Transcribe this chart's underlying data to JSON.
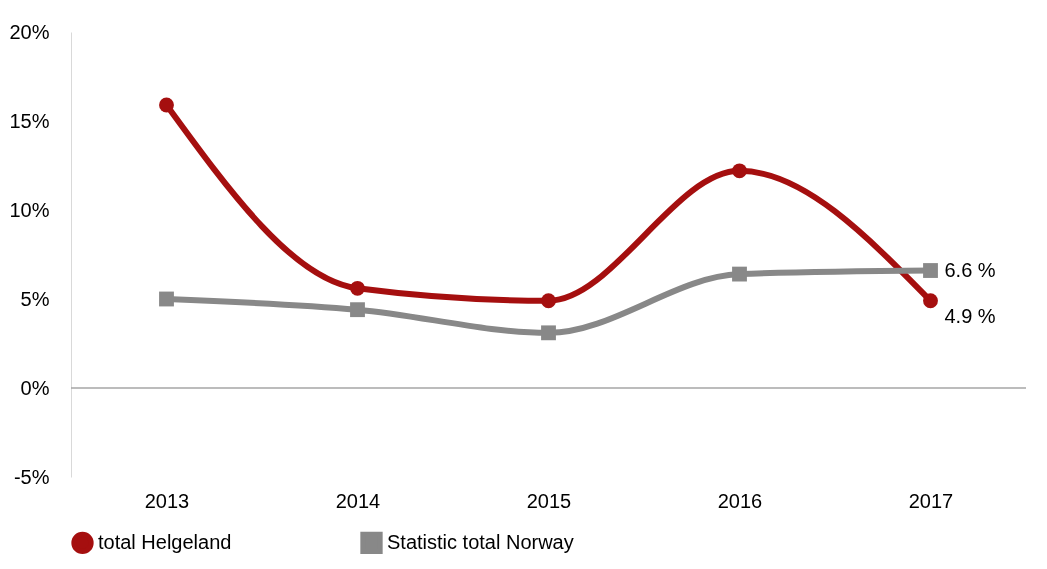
{
  "chart_data": {
    "type": "line",
    "categories": [
      "2013",
      "2014",
      "2015",
      "2016",
      "2017"
    ],
    "series": [
      {
        "name": "total Helgeland",
        "color": "#a50f0f",
        "marker": "circle",
        "values": [
          15.9,
          5.6,
          4.9,
          12.2,
          4.9
        ],
        "value_labels": [
          null,
          null,
          null,
          null,
          "4.9 %"
        ]
      },
      {
        "name": "Statistic total Norway",
        "color": "#888888",
        "marker": "square",
        "values": [
          5.0,
          4.4,
          3.1,
          6.4,
          6.6
        ],
        "value_labels": [
          null,
          null,
          null,
          null,
          "6.6 %"
        ]
      }
    ],
    "ylim": [
      -5,
      20
    ],
    "yticks": [
      {
        "value": -5,
        "label": "-5%"
      },
      {
        "value": 0,
        "label": "0%"
      },
      {
        "value": 5,
        "label": "5%"
      },
      {
        "value": 10,
        "label": "10%"
      },
      {
        "value": 15,
        "label": "15%"
      },
      {
        "value": 20,
        "label": "20%"
      }
    ],
    "ref_lines": [
      {
        "axis": "y",
        "value": 0,
        "color": "#a6a6a6"
      }
    ],
    "grid": false,
    "legend": "bottom"
  }
}
